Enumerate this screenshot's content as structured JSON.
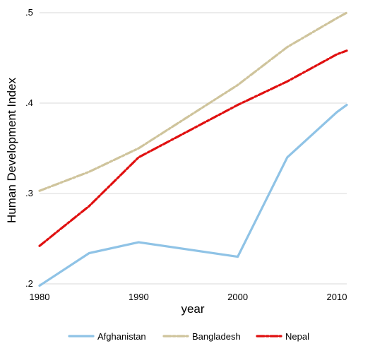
{
  "chart_data": {
    "type": "line",
    "title": "",
    "xlabel": "year",
    "ylabel": "Human Development Index",
    "xlim": [
      1980,
      2011
    ],
    "ylim": [
      0.2,
      0.5
    ],
    "xticks": [
      1980,
      1990,
      2000,
      2010
    ],
    "xtick_labels": [
      "1980",
      "1990",
      "2000",
      "2010"
    ],
    "yticks": [
      0.2,
      0.3,
      0.4,
      0.5
    ],
    "ytick_labels": [
      ".2",
      ".3",
      ".4",
      ".5"
    ],
    "grid": true,
    "legend_position": "bottom",
    "series": [
      {
        "name": "Afghanistan",
        "color": "#8fc3e6",
        "style": "solid",
        "x": [
          1980,
          1985,
          1990,
          2000,
          2005,
          2010,
          2011
        ],
        "y": [
          0.198,
          0.234,
          0.246,
          0.23,
          0.34,
          0.39,
          0.398
        ]
      },
      {
        "name": "Bangladesh",
        "color": "#cfc49c",
        "style": "dashdot",
        "x": [
          1980,
          1985,
          1990,
          2000,
          2005,
          2010,
          2011
        ],
        "y": [
          0.303,
          0.324,
          0.35,
          0.42,
          0.462,
          0.494,
          0.5
        ]
      },
      {
        "name": "Nepal",
        "color": "#e01010",
        "style": "dashdot",
        "x": [
          1980,
          1985,
          1990,
          2000,
          2005,
          2010,
          2011
        ],
        "y": [
          0.242,
          0.286,
          0.34,
          0.398,
          0.424,
          0.454,
          0.458
        ]
      }
    ]
  }
}
